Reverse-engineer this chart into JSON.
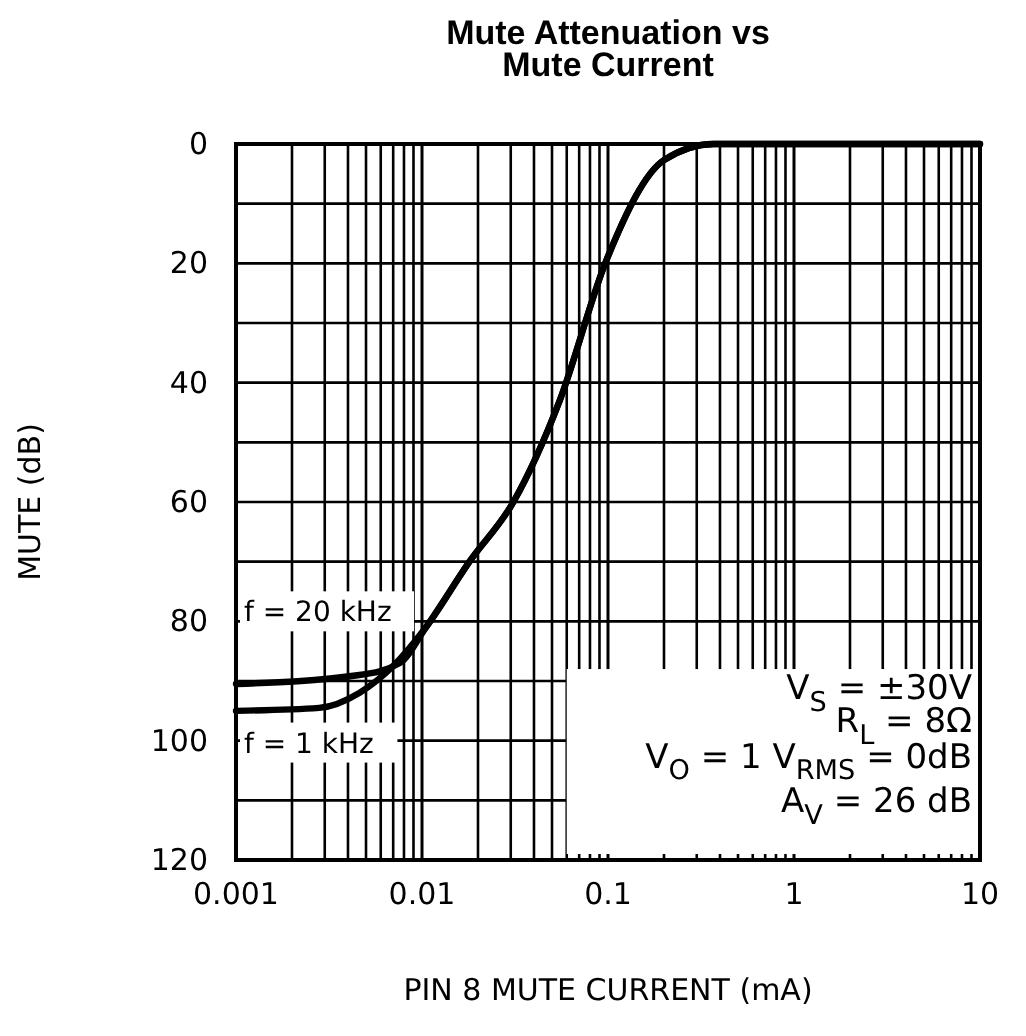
{
  "chart_data": {
    "type": "line",
    "title": "Mute Attenuation vs\nMute Current",
    "xlabel": "PIN 8 MUTE CURRENT (mA)",
    "ylabel": "MUTE (dB)",
    "log": "x",
    "xlim": [
      0.001,
      10
    ],
    "ylim": [
      120,
      0
    ],
    "xticks": [
      0.001,
      {
        "value": 0.002,
        "label": null
      },
      {
        "value": 0.003,
        "label": null
      },
      {
        "value": 0.004,
        "label": null
      },
      {
        "value": 0.005,
        "label": null
      },
      {
        "value": 0.006,
        "label": null
      },
      {
        "value": 0.007,
        "label": null
      },
      {
        "value": 0.008,
        "label": null
      },
      {
        "value": 0.009,
        "label": null
      },
      0.01,
      {
        "value": 0.02,
        "label": null
      },
      {
        "value": 0.03,
        "label": null
      },
      {
        "value": 0.04,
        "label": null
      },
      {
        "value": 0.05,
        "label": null
      },
      {
        "value": 0.06,
        "label": null
      },
      {
        "value": 0.07,
        "label": null
      },
      {
        "value": 0.08,
        "label": null
      },
      {
        "value": 0.09,
        "label": null
      },
      0.1,
      {
        "value": 0.2,
        "label": null
      },
      {
        "value": 0.3,
        "label": null
      },
      {
        "value": 0.4,
        "label": null
      },
      {
        "value": 0.5,
        "label": null
      },
      {
        "value": 0.6,
        "label": null
      },
      {
        "value": 0.7,
        "label": null
      },
      {
        "value": 0.8,
        "label": null
      },
      {
        "value": 0.9,
        "label": null
      },
      1,
      {
        "value": 2,
        "label": null
      },
      {
        "value": 3,
        "label": null
      },
      {
        "value": 4,
        "label": null
      },
      {
        "value": 5,
        "label": null
      },
      {
        "value": 6,
        "label": null
      },
      {
        "value": 7,
        "label": null
      },
      {
        "value": 8,
        "label": null
      },
      {
        "value": 9,
        "label": null
      },
      10
    ],
    "yticks": [
      0,
      {
        "value": 10,
        "label": null
      },
      20,
      {
        "value": 30,
        "label": null
      },
      40,
      {
        "value": 50,
        "label": null
      },
      60,
      {
        "value": 70,
        "label": null
      },
      80,
      {
        "value": 90,
        "label": null
      },
      100,
      {
        "value": 110,
        "label": null
      },
      120
    ],
    "grid": true,
    "line_style": "solid",
    "series": [
      {
        "name": "f = 20 kHz",
        "color": "#000000",
        "x": [
          0.001,
          0.0046,
          0.0076,
          0.0105,
          0.018,
          0.031,
          0.055,
          0.098,
          0.2,
          0.37,
          10
        ],
        "values": [
          90.5,
          89,
          87,
          81,
          70,
          60,
          43,
          19.5,
          2.7,
          0,
          0
        ]
      },
      {
        "name": "f = 1 kHz",
        "color": "#000000",
        "x": [
          0.001,
          0.0028,
          0.0046,
          0.007,
          0.0105,
          0.018,
          0.031,
          0.055,
          0.098,
          0.2,
          0.37,
          10
        ],
        "values": [
          95,
          94.5,
          92,
          87.5,
          81,
          70,
          60,
          43,
          19.5,
          2.7,
          0,
          0
        ]
      }
    ],
    "annotations": [
      "V$_{S}$ = ±30V",
      "R$_{L}$ = 8Ω",
      "V$_{O}$ = 1 V$_{RMS}$ = 0dB",
      "A$_{V}$ = 26 dB"
    ]
  }
}
